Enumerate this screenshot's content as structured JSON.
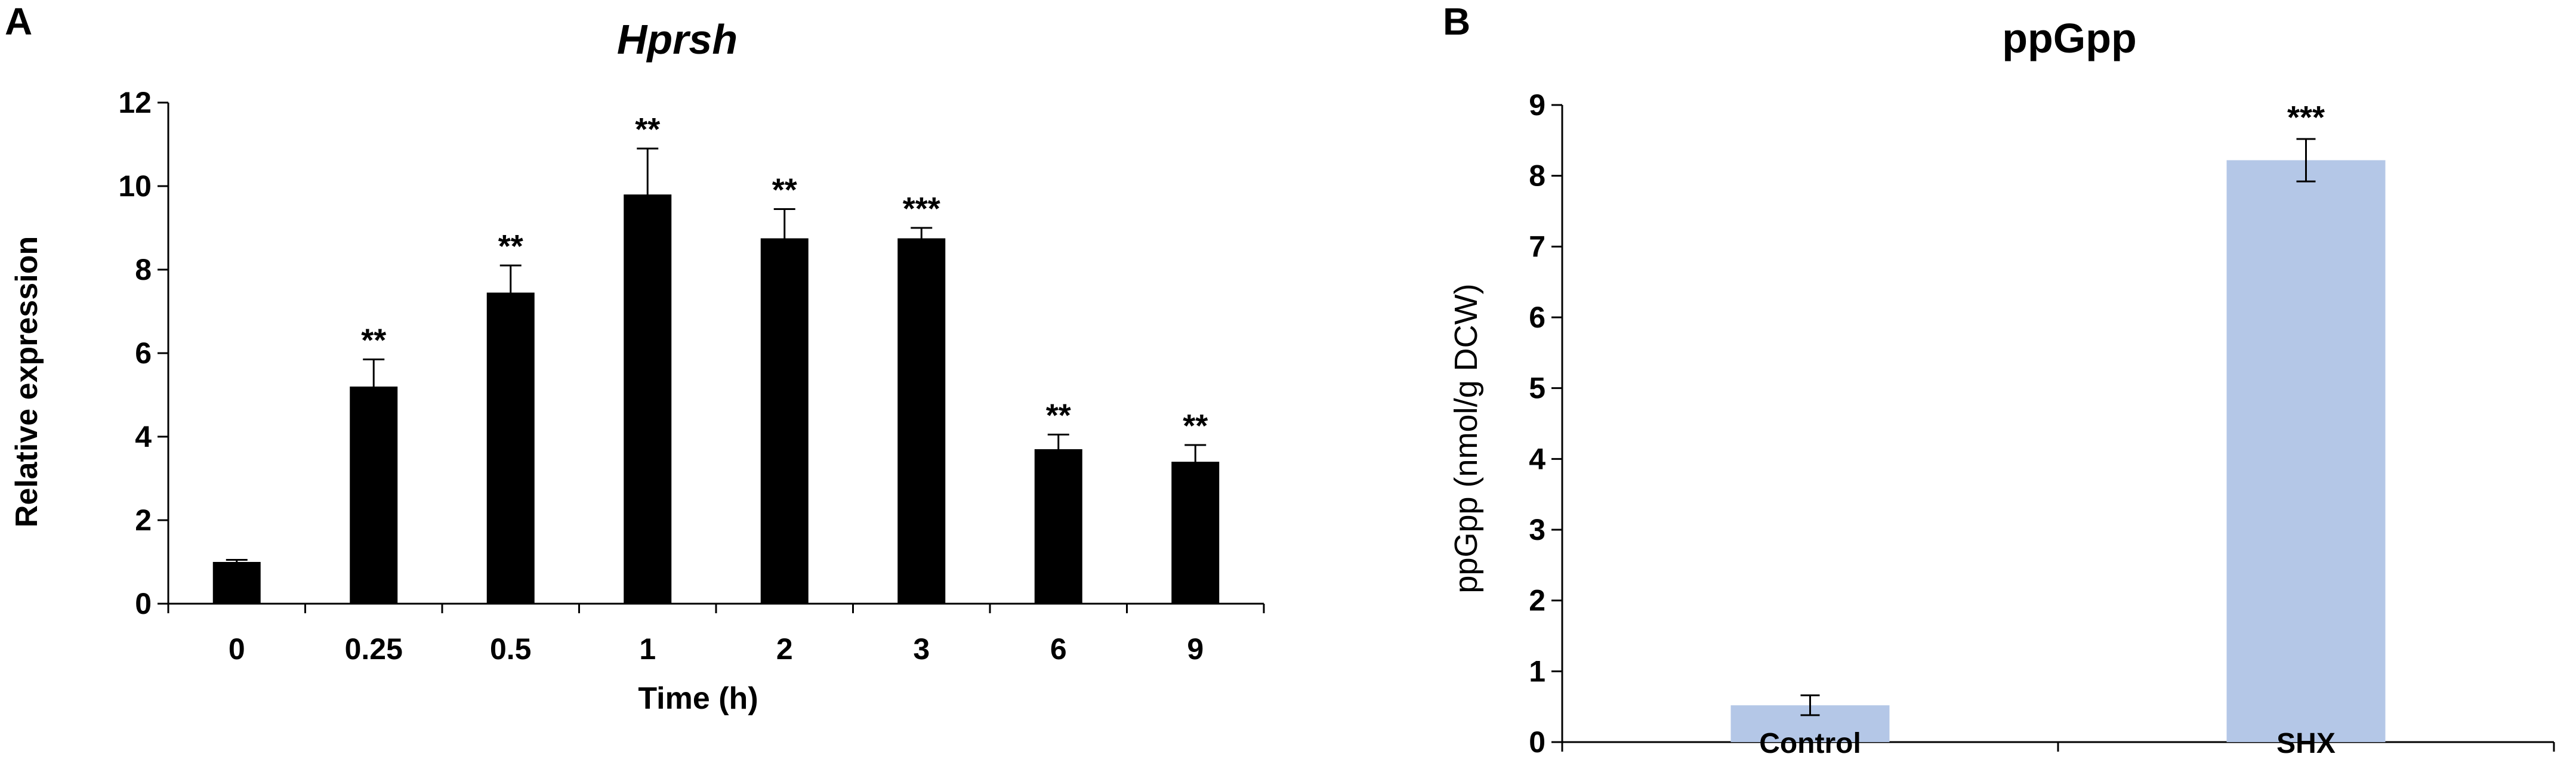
{
  "panels": [
    "A",
    "B"
  ],
  "chart_data": [
    {
      "type": "bar",
      "panel": "A",
      "title": "Hprsh",
      "xlabel": "Time (h)",
      "ylabel": "Relative expression",
      "categories": [
        "0",
        "0.25",
        "0.5",
        "1",
        "2",
        "3",
        "6",
        "9"
      ],
      "values": [
        1.0,
        5.2,
        7.45,
        9.8,
        8.75,
        8.75,
        3.7,
        3.4
      ],
      "errors": [
        0.05,
        0.65,
        0.65,
        1.1,
        0.7,
        0.25,
        0.35,
        0.4
      ],
      "annotations": [
        "",
        "**",
        "**",
        "**",
        "**",
        "***",
        "**",
        "**"
      ],
      "ylim": [
        0,
        12
      ],
      "yticks": [
        "0",
        "2",
        "4",
        "6",
        "8",
        "10",
        "12"
      ],
      "grid": false,
      "bar_color": "#000000"
    },
    {
      "type": "bar",
      "panel": "B",
      "title": "ppGpp",
      "xlabel": "",
      "ylabel": "ppGpp (nmol/g DCW)",
      "categories": [
        "Control",
        "SHX"
      ],
      "values": [
        0.52,
        8.22
      ],
      "errors": [
        0.14,
        0.3
      ],
      "annotations": [
        "",
        "***"
      ],
      "ylim": [
        0,
        9
      ],
      "yticks": [
        "0",
        "1",
        "2",
        "3",
        "4",
        "5",
        "6",
        "7",
        "8",
        "9"
      ],
      "grid": false,
      "bar_color": "#b4c7e7"
    }
  ]
}
